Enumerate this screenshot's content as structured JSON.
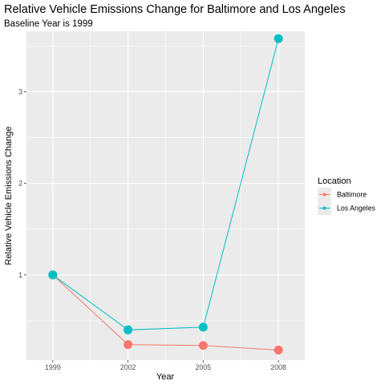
{
  "chart_data": {
    "type": "line",
    "title": "Relative Vehicle Emissions Change for Baltimore and Los Angeles",
    "subtitle": "Baseline Year is 1999",
    "xlabel": "Year",
    "ylabel": "Relative Vehicle Emissions Change",
    "x": [
      1999,
      2002,
      2005,
      2008
    ],
    "xlim": [
      1997.95,
      2009.05
    ],
    "ylim": [
      0.07,
      3.66
    ],
    "y_ticks": [
      1,
      2,
      3
    ],
    "x_ticks": [
      1999,
      2002,
      2005,
      2008
    ],
    "grid": true,
    "legend": {
      "title": "Location",
      "placement": "right"
    },
    "series": [
      {
        "name": "Baltimore",
        "color": "#F8766D",
        "values": [
          1.0,
          0.24,
          0.23,
          0.18
        ]
      },
      {
        "name": "Los Angeles",
        "color": "#00BFC4",
        "values": [
          1.0,
          0.4,
          0.43,
          3.58
        ]
      }
    ]
  }
}
